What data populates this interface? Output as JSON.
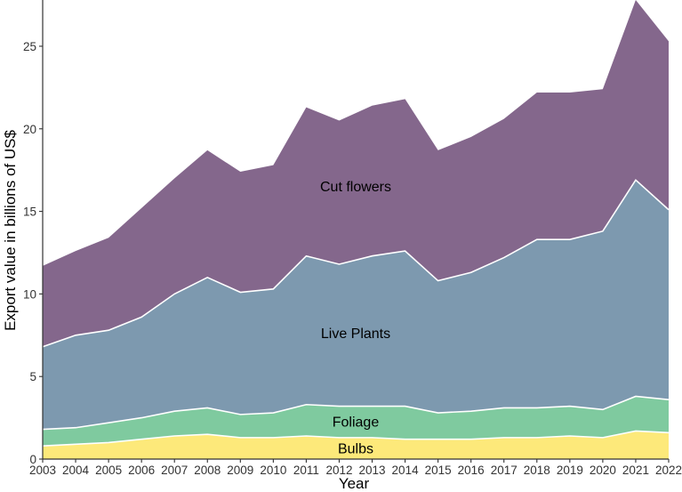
{
  "chart_data": {
    "type": "area",
    "stacked": true,
    "x": [
      2003,
      2004,
      2005,
      2006,
      2007,
      2008,
      2009,
      2010,
      2011,
      2012,
      2013,
      2014,
      2015,
      2016,
      2017,
      2018,
      2019,
      2020,
      2021,
      2022
    ],
    "series": [
      {
        "name": "Bulbs",
        "color": "#FDE97A",
        "values": [
          0.8,
          0.9,
          1.0,
          1.2,
          1.4,
          1.5,
          1.3,
          1.3,
          1.4,
          1.3,
          1.3,
          1.2,
          1.2,
          1.2,
          1.3,
          1.3,
          1.4,
          1.3,
          1.7,
          1.6
        ]
      },
      {
        "name": "Foliage",
        "color": "#7FCA9F",
        "values": [
          1.0,
          1.0,
          1.2,
          1.3,
          1.5,
          1.6,
          1.4,
          1.5,
          1.9,
          1.9,
          1.9,
          2.0,
          1.6,
          1.7,
          1.8,
          1.8,
          1.8,
          1.7,
          2.1,
          2.0
        ]
      },
      {
        "name": "Live Plants",
        "color": "#7D99AF",
        "values": [
          5.0,
          5.6,
          5.6,
          6.1,
          7.1,
          7.9,
          7.4,
          7.5,
          9.0,
          8.6,
          9.1,
          9.4,
          8.0,
          8.4,
          9.1,
          10.2,
          10.1,
          10.8,
          13.1,
          11.5
        ]
      },
      {
        "name": "Cut flowers",
        "color": "#84678C",
        "values": [
          4.9,
          5.1,
          5.6,
          6.6,
          7.0,
          7.7,
          7.3,
          7.5,
          9.0,
          8.7,
          9.1,
          9.2,
          7.9,
          8.2,
          8.4,
          8.9,
          8.9,
          8.6,
          10.9,
          10.2
        ]
      }
    ],
    "title": "",
    "xlabel": "Year",
    "ylabel": "Export value in billions of US$",
    "xlim": [
      2003,
      2022
    ],
    "ylim": [
      0,
      27.8
    ],
    "yticks": [
      0,
      5,
      10,
      15,
      20,
      25
    ],
    "grid": false,
    "legend": "none",
    "annotations": [
      {
        "text": "Cut flowers",
        "series": "Cut flowers",
        "at_x": 2012.5
      },
      {
        "text": "Live Plants",
        "series": "Live Plants",
        "at_x": 2012.5
      },
      {
        "text": "Foliage",
        "series": "Foliage",
        "at_x": 2012.5
      },
      {
        "text": "Bulbs",
        "series": "Bulbs",
        "at_x": 2012.5
      }
    ]
  }
}
